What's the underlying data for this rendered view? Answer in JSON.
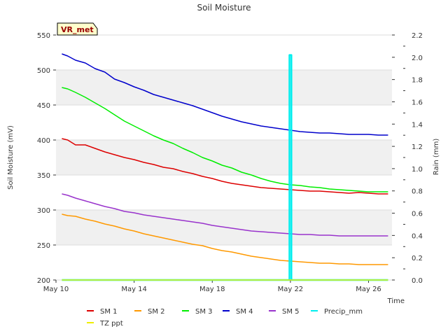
{
  "chart_data": {
    "type": "line",
    "title": "Soil Moisture",
    "badge": "VR_met",
    "xlabel": "Time",
    "ylabel": "Soil Moisture (mV)",
    "y2label": "Rain (mm)",
    "xlim": [
      10,
      27.2
    ],
    "ylim": [
      200,
      550
    ],
    "y2lim": [
      0,
      2.2
    ],
    "x_ticks": [
      {
        "v": 10,
        "label": "May 10"
      },
      {
        "v": 14,
        "label": "May 14"
      },
      {
        "v": 18,
        "label": "May 18"
      },
      {
        "v": 22,
        "label": "May 22"
      },
      {
        "v": 26,
        "label": "May 26"
      }
    ],
    "y_ticks": [
      200,
      250,
      300,
      350,
      400,
      450,
      500,
      550
    ],
    "y2_ticks": [
      "0.0",
      "0.2",
      "0.4",
      "0.6",
      "0.8",
      "1.0",
      "1.2",
      "1.4",
      "1.6",
      "1.8",
      "2.0",
      "2.2"
    ],
    "series": [
      {
        "name": "SM 1",
        "color": "#dd0000",
        "axis": "left",
        "x": [
          10.3,
          10.6,
          11.0,
          11.5,
          12.0,
          12.5,
          13.0,
          13.5,
          14.0,
          14.5,
          15.0,
          15.5,
          16.0,
          16.5,
          17.0,
          17.5,
          18.0,
          18.5,
          19.0,
          19.5,
          20.0,
          20.5,
          21.0,
          21.5,
          22.0,
          22.5,
          23.0,
          23.5,
          24.0,
          24.5,
          25.0,
          25.5,
          26.0,
          26.5,
          27.0
        ],
        "values": [
          402,
          400,
          393,
          393,
          388,
          383,
          379,
          375,
          372,
          368,
          365,
          361,
          359,
          355,
          352,
          348,
          345,
          341,
          338,
          336,
          334,
          332,
          331,
          330,
          329,
          328,
          327,
          327,
          326,
          325,
          324,
          325,
          324,
          323,
          323
        ]
      },
      {
        "name": "SM 2",
        "color": "#ff9900",
        "axis": "left",
        "x": [
          10.3,
          10.6,
          11.0,
          11.5,
          12.0,
          12.5,
          13.0,
          13.5,
          14.0,
          14.5,
          15.0,
          15.5,
          16.0,
          16.5,
          17.0,
          17.5,
          18.0,
          18.5,
          19.0,
          19.5,
          20.0,
          20.5,
          21.0,
          21.5,
          22.0,
          22.5,
          23.0,
          23.5,
          24.0,
          24.5,
          25.0,
          25.5,
          26.0,
          26.5,
          27.0
        ],
        "values": [
          294,
          292,
          291,
          287,
          284,
          280,
          277,
          273,
          270,
          266,
          263,
          260,
          257,
          254,
          251,
          249,
          245,
          242,
          240,
          237,
          234,
          232,
          230,
          228,
          227,
          226,
          225,
          224,
          224,
          223,
          223,
          222,
          222,
          222,
          222
        ]
      },
      {
        "name": "SM 3",
        "color": "#00ee00",
        "axis": "left",
        "x": [
          10.3,
          10.6,
          11.0,
          11.5,
          12.0,
          12.5,
          13.0,
          13.5,
          14.0,
          14.5,
          15.0,
          15.5,
          16.0,
          16.5,
          17.0,
          17.5,
          18.0,
          18.5,
          19.0,
          19.5,
          20.0,
          20.5,
          21.0,
          21.5,
          22.0,
          22.5,
          23.0,
          23.5,
          24.0,
          24.5,
          25.0,
          25.5,
          26.0,
          26.5,
          27.0
        ],
        "values": [
          475,
          473,
          468,
          461,
          453,
          445,
          436,
          427,
          420,
          413,
          406,
          400,
          395,
          388,
          382,
          375,
          370,
          364,
          360,
          354,
          350,
          345,
          341,
          338,
          336,
          335,
          333,
          332,
          330,
          329,
          328,
          327,
          326,
          326,
          326
        ]
      },
      {
        "name": "SM 4",
        "color": "#0000cc",
        "axis": "left",
        "x": [
          10.3,
          10.6,
          11.0,
          11.5,
          12.0,
          12.5,
          13.0,
          13.5,
          14.0,
          14.5,
          15.0,
          15.5,
          16.0,
          16.5,
          17.0,
          17.5,
          18.0,
          18.5,
          19.0,
          19.5,
          20.0,
          20.5,
          21.0,
          21.5,
          22.0,
          22.5,
          23.0,
          23.5,
          24.0,
          24.5,
          25.0,
          25.5,
          26.0,
          26.5,
          27.0
        ],
        "values": [
          523,
          520,
          514,
          510,
          502,
          497,
          487,
          482,
          476,
          471,
          465,
          461,
          457,
          453,
          449,
          444,
          439,
          434,
          430,
          426,
          423,
          420,
          418,
          416,
          414,
          412,
          411,
          410,
          410,
          409,
          408,
          408,
          408,
          407,
          407
        ]
      },
      {
        "name": "SM 5",
        "color": "#9933cc",
        "axis": "left",
        "x": [
          10.3,
          10.6,
          11.0,
          11.5,
          12.0,
          12.5,
          13.0,
          13.5,
          14.0,
          14.5,
          15.0,
          15.5,
          16.0,
          16.5,
          17.0,
          17.5,
          18.0,
          18.5,
          19.0,
          19.5,
          20.0,
          20.5,
          21.0,
          21.5,
          22.0,
          22.5,
          23.0,
          23.5,
          24.0,
          24.5,
          25.0,
          25.5,
          26.0,
          26.5,
          27.0
        ],
        "values": [
          323,
          321,
          317,
          313,
          309,
          305,
          302,
          298,
          296,
          293,
          291,
          289,
          287,
          285,
          283,
          281,
          278,
          276,
          274,
          272,
          270,
          269,
          268,
          267,
          266,
          265,
          265,
          264,
          264,
          263,
          263,
          263,
          263,
          263,
          263
        ]
      },
      {
        "name": "Precip_mm",
        "color": "#00eeee",
        "axis": "right",
        "x": [
          10.3,
          21.95,
          21.95,
          22.05,
          22.05,
          27.0
        ],
        "values": [
          0,
          0,
          2.02,
          2.02,
          0,
          0
        ]
      },
      {
        "name": "TZ ppt",
        "color": "#eeee00",
        "axis": "left",
        "x": [
          10.3,
          27.0
        ],
        "values": [
          200,
          200
        ]
      }
    ],
    "legend_position": "bottom"
  }
}
